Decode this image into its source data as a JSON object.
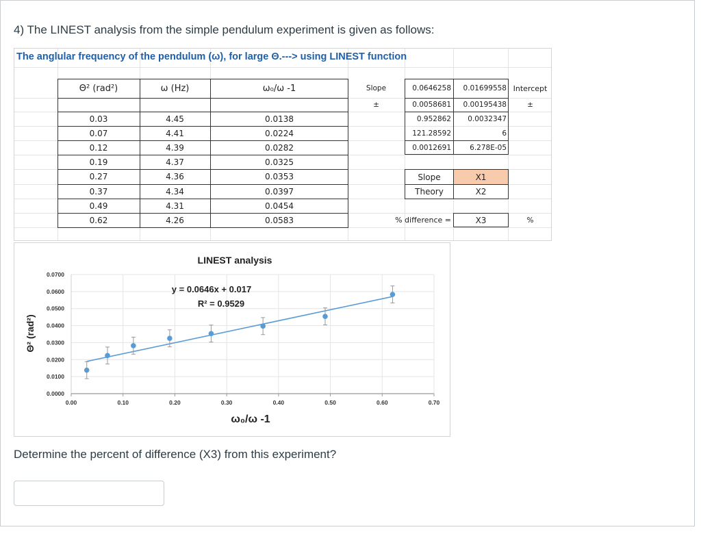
{
  "question": {
    "title": "4) The LINEST analysis from the simple pendulum experiment is given as follows:",
    "prompt": "Determine the percent of difference (X3) from this experiment?",
    "answer_value": "",
    "answer_placeholder": ""
  },
  "sheet": {
    "heading": "The anglular frequency of the pendulum (ω), for large Θ.---> using LINEST function",
    "columns": [
      "Θ² (rad²)",
      "ω (Hz)",
      "ω₀/ω -1"
    ],
    "rows": [
      [
        "0.03",
        "4.45",
        "0.0138"
      ],
      [
        "0.07",
        "4.41",
        "0.0224"
      ],
      [
        "0.12",
        "4.39",
        "0.0282"
      ],
      [
        "0.19",
        "4.37",
        "0.0325"
      ],
      [
        "0.27",
        "4.36",
        "0.0353"
      ],
      [
        "0.37",
        "4.34",
        "0.0397"
      ],
      [
        "0.49",
        "4.31",
        "0.0454"
      ],
      [
        "0.62",
        "4.26",
        "0.0583"
      ]
    ],
    "linest": {
      "slope_label": "Slope",
      "pm_label": "±",
      "intercept_label": "Intercept",
      "pm_label_right": "±",
      "cells": [
        [
          "0.0646258",
          "0.01699558"
        ],
        [
          "0.0058681",
          "0.00195438"
        ],
        [
          "0.952862",
          "0.0032347"
        ],
        [
          "121.28592",
          "6"
        ],
        [
          "0.0012691",
          "6.278E-05"
        ]
      ]
    },
    "compare": {
      "slope_label": "Slope",
      "slope_value": "X1",
      "theory_label": "Theory",
      "theory_value": "X2",
      "diff_label": "% difference =",
      "diff_value": "X3",
      "diff_unit": "%"
    }
  },
  "chart_data": {
    "type": "scatter",
    "title": "LINEST analysis",
    "xlabel": "ω₀/ω -1",
    "ylabel": "Θ² (rad²)",
    "xlim": [
      0.0,
      0.7
    ],
    "ylim": [
      0.0,
      0.07
    ],
    "x_ticks": [
      "0.00",
      "0.10",
      "0.20",
      "0.30",
      "0.40",
      "0.50",
      "0.60",
      "0.70"
    ],
    "y_ticks": [
      "0.0000",
      "0.0100",
      "0.0200",
      "0.0300",
      "0.0400",
      "0.0500",
      "0.0600",
      "0.0700"
    ],
    "grid": true,
    "series": [
      {
        "name": "data",
        "x": [
          0.03,
          0.07,
          0.12,
          0.19,
          0.27,
          0.37,
          0.49,
          0.62
        ],
        "y": [
          0.0138,
          0.0224,
          0.0282,
          0.0325,
          0.0353,
          0.0397,
          0.0454,
          0.0583
        ],
        "error_y": 0.005,
        "color": "#5b9bd5"
      }
    ],
    "trendline": {
      "equation": "y = 0.0646x + 0.017",
      "r_squared": "R² = 0.9529",
      "slope": 0.0646,
      "intercept": 0.017,
      "x_range": [
        0.03,
        0.62
      ]
    }
  }
}
